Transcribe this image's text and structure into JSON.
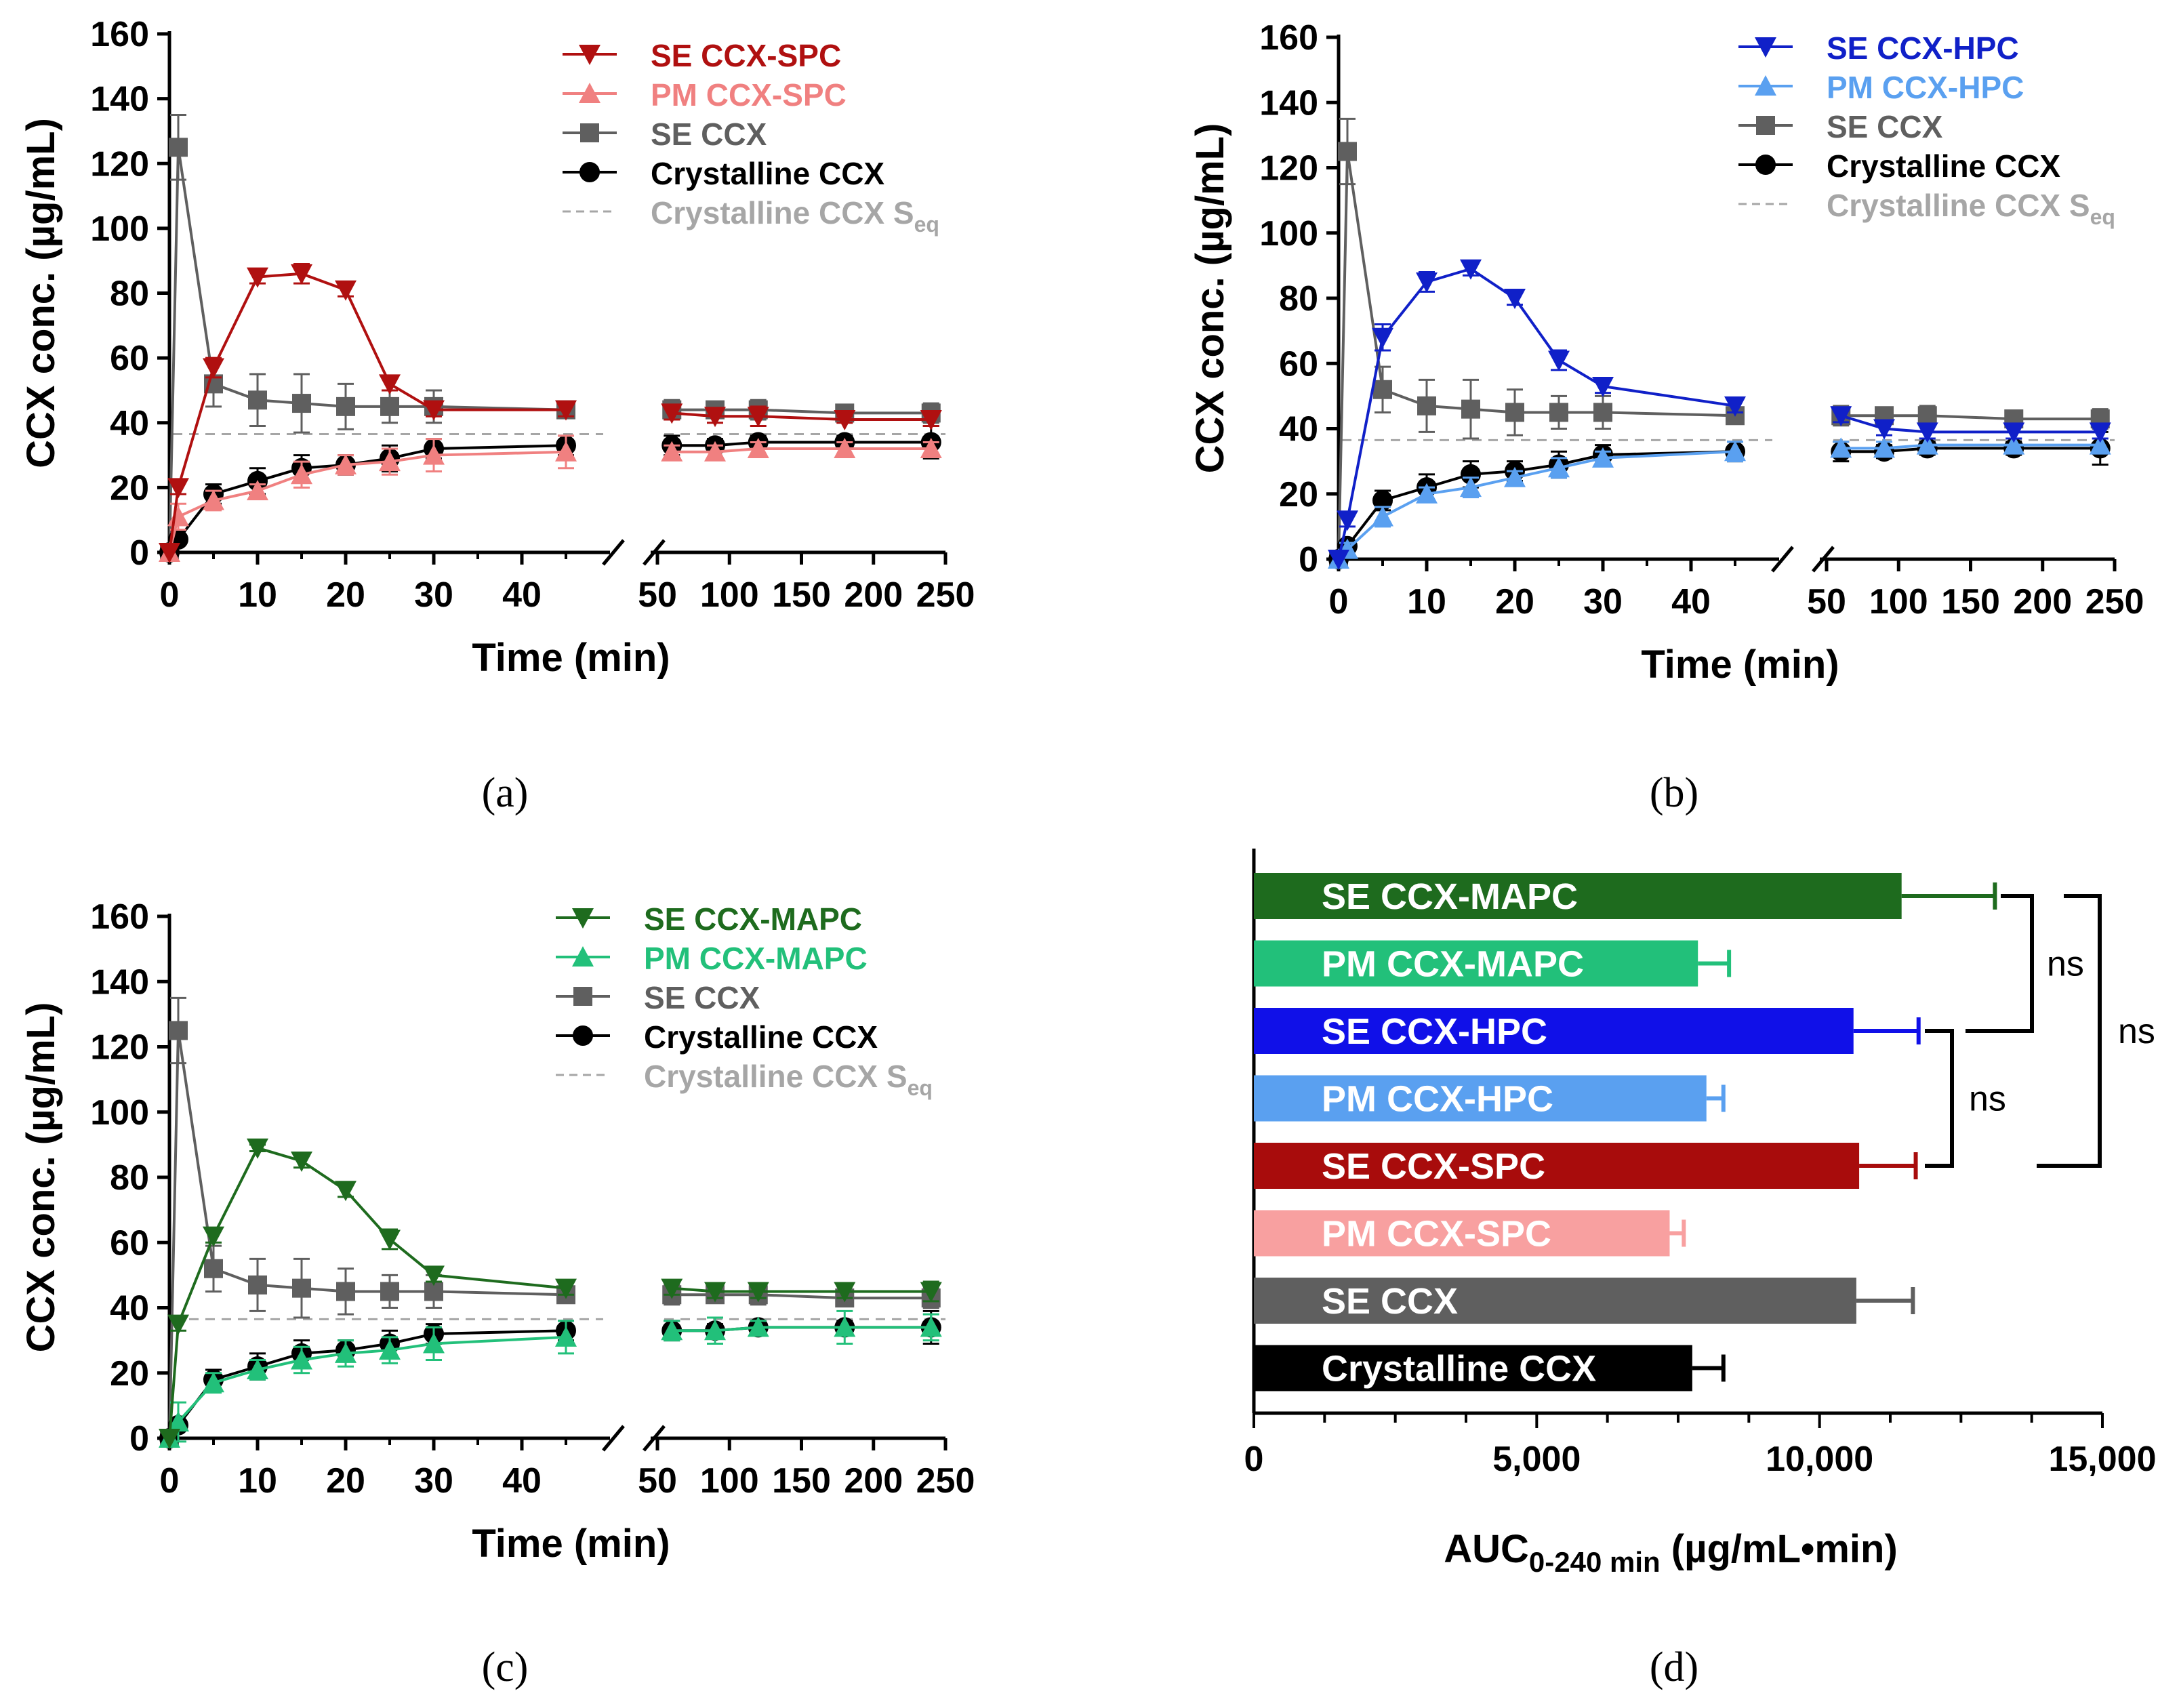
{
  "chart_data": [
    {
      "panel": "(a)",
      "type": "line",
      "ylabel": "CCX conc. (µg/mL)",
      "xlabel": "Time (min)",
      "ylim": [
        0,
        160
      ],
      "yticks": [
        "0",
        "20",
        "40",
        "60",
        "80",
        "100",
        "120",
        "140",
        "160"
      ],
      "xticks_left": [
        "0",
        "10",
        "20",
        "30",
        "40"
      ],
      "xticks_right": [
        "50",
        "100",
        "150",
        "200",
        "250"
      ],
      "reference_line": {
        "name": "Crystalline CCX S",
        "sub": "eq",
        "value": 36.5,
        "color": "#a6a6a6"
      },
      "series": [
        {
          "name": "SE  CCX-SPC",
          "color": "#b01010",
          "marker": "tri-down",
          "x": [
            0,
            1,
            5,
            10,
            15,
            20,
            25,
            30,
            45,
            60,
            90,
            120,
            180,
            240
          ],
          "y": [
            0,
            20,
            57,
            85,
            86,
            81,
            52,
            44,
            44,
            43,
            42,
            42,
            41,
            41
          ],
          "err": [
            0,
            2,
            3,
            2,
            3,
            2,
            2,
            2,
            2,
            2,
            2,
            3,
            1,
            2
          ]
        },
        {
          "name": "PM CCX-SPC",
          "color": "#f08080",
          "marker": "tri-up",
          "x": [
            0,
            1,
            5,
            10,
            15,
            20,
            25,
            30,
            45,
            60,
            90,
            120,
            180,
            240
          ],
          "y": [
            0,
            11,
            16,
            19,
            24,
            27,
            28,
            30,
            31,
            31,
            31,
            32,
            32,
            32
          ],
          "err": [
            0,
            4,
            3,
            2,
            4,
            3,
            4,
            5,
            5,
            2,
            2,
            2,
            2,
            2
          ]
        },
        {
          "name": "SE  CCX",
          "color": "#5f5f5f",
          "marker": "square",
          "x": [
            0,
            1,
            5,
            10,
            15,
            20,
            25,
            30,
            45,
            60,
            90,
            120,
            180,
            240
          ],
          "y": [
            0,
            125,
            52,
            47,
            46,
            45,
            45,
            45,
            44,
            44,
            44,
            44,
            43,
            43
          ],
          "err": [
            0,
            10,
            7,
            8,
            9,
            7,
            5,
            5,
            2,
            3,
            2,
            3,
            2,
            3
          ]
        },
        {
          "name": "Crystalline CCX",
          "color": "#000000",
          "marker": "circle",
          "x": [
            0,
            1,
            5,
            10,
            15,
            20,
            25,
            30,
            45,
            60,
            90,
            120,
            180,
            240
          ],
          "y": [
            0,
            4,
            18,
            22,
            26,
            27,
            29,
            32,
            33,
            33,
            33,
            34,
            34,
            34
          ],
          "err": [
            0,
            1,
            3,
            4,
            4,
            3,
            4,
            3,
            3,
            3,
            2,
            2,
            2,
            5
          ]
        }
      ]
    },
    {
      "panel": "(b)",
      "type": "line",
      "ylabel": "CCX conc. (µg/mL)",
      "xlabel": "Time (min)",
      "ylim": [
        0,
        160
      ],
      "yticks": [
        "0",
        "20",
        "40",
        "60",
        "80",
        "100",
        "120",
        "140",
        "160"
      ],
      "xticks_left": [
        "0",
        "10",
        "20",
        "30",
        "40"
      ],
      "xticks_right": [
        "50",
        "100",
        "150",
        "200",
        "250"
      ],
      "reference_line": {
        "name": "Crystalline CCX S",
        "sub": "eq",
        "value": 36.5,
        "color": "#a6a6a6"
      },
      "series": [
        {
          "name": "SE  CCX-HPC",
          "color": "#1020c8",
          "marker": "tri-down",
          "x": [
            0,
            1,
            5,
            10,
            15,
            20,
            25,
            30,
            45,
            60,
            90,
            120,
            180,
            240
          ],
          "y": [
            0,
            12,
            68,
            85,
            89,
            80,
            61,
            53,
            47,
            44,
            40,
            39,
            39,
            39
          ],
          "err": [
            0,
            2,
            4,
            3,
            2,
            2,
            3,
            2,
            2,
            2,
            2,
            2,
            2,
            2
          ]
        },
        {
          "name": "PM CCX-HPC",
          "color": "#5aa0f0",
          "marker": "tri-up",
          "x": [
            0,
            1,
            5,
            10,
            15,
            20,
            25,
            30,
            45,
            60,
            90,
            120,
            180,
            240
          ],
          "y": [
            0,
            3,
            13,
            20,
            22,
            25,
            28,
            31,
            33,
            34,
            34,
            35,
            35,
            35
          ],
          "err": [
            0,
            2,
            3,
            2,
            3,
            2,
            3,
            2,
            3,
            2,
            2,
            2,
            2,
            2
          ]
        },
        {
          "name": "SE CCX",
          "color": "#5f5f5f",
          "marker": "square",
          "x": [
            0,
            1,
            5,
            10,
            15,
            20,
            25,
            30,
            45,
            60,
            90,
            120,
            180,
            240
          ],
          "y": [
            0,
            125,
            52,
            47,
            46,
            45,
            45,
            45,
            44,
            44,
            44,
            44,
            43,
            43
          ],
          "err": [
            0,
            10,
            7,
            8,
            9,
            7,
            5,
            5,
            2,
            3,
            2,
            3,
            2,
            3
          ]
        },
        {
          "name": "Crystalline CCX",
          "color": "#000000",
          "marker": "circle",
          "x": [
            0,
            1,
            5,
            10,
            15,
            20,
            25,
            30,
            45,
            60,
            90,
            120,
            180,
            240
          ],
          "y": [
            0,
            4,
            18,
            22,
            26,
            27,
            29,
            32,
            33,
            33,
            33,
            34,
            34,
            34
          ],
          "err": [
            0,
            1,
            3,
            4,
            4,
            3,
            4,
            3,
            3,
            3,
            2,
            2,
            2,
            5
          ]
        }
      ]
    },
    {
      "panel": "(c)",
      "type": "line",
      "ylabel": "CCX conc. (µg/mL)",
      "xlabel": "Time (min)",
      "ylim": [
        0,
        160
      ],
      "yticks": [
        "0",
        "20",
        "40",
        "60",
        "80",
        "100",
        "120",
        "140",
        "160"
      ],
      "xticks_left": [
        "0",
        "10",
        "20",
        "30",
        "40"
      ],
      "xticks_right": [
        "50",
        "100",
        "150",
        "200",
        "250"
      ],
      "reference_line": {
        "name": "Crystalline CCX S",
        "sub": "eq",
        "value": 36.5,
        "color": "#a6a6a6"
      },
      "series": [
        {
          "name": "SE  CCX-MAPC",
          "color": "#1e6b1e",
          "marker": "tri-down",
          "x": [
            0,
            1,
            5,
            10,
            15,
            20,
            25,
            30,
            45,
            60,
            90,
            120,
            180,
            240
          ],
          "y": [
            0,
            35,
            62,
            89,
            85,
            76,
            61,
            50,
            46,
            46,
            45,
            45,
            45,
            45
          ],
          "err": [
            0,
            2,
            2,
            1,
            2,
            2,
            3,
            2,
            2,
            2,
            2,
            2,
            2,
            3
          ]
        },
        {
          "name": "PM CCX-MAPC",
          "color": "#22c07a",
          "marker": "tri-up",
          "x": [
            0,
            1,
            5,
            10,
            15,
            20,
            25,
            30,
            45,
            60,
            90,
            120,
            180,
            240
          ],
          "y": [
            0,
            5,
            17,
            21,
            24,
            26,
            27,
            29,
            31,
            33,
            33,
            34,
            34,
            34
          ],
          "err": [
            0,
            6,
            3,
            3,
            4,
            4,
            4,
            5,
            5,
            3,
            4,
            2,
            5,
            4
          ]
        },
        {
          "name": "SE CCX",
          "color": "#5f5f5f",
          "marker": "square",
          "x": [
            0,
            1,
            5,
            10,
            15,
            20,
            25,
            30,
            45,
            60,
            90,
            120,
            180,
            240
          ],
          "y": [
            0,
            125,
            52,
            47,
            46,
            45,
            45,
            45,
            44,
            44,
            44,
            44,
            43,
            43
          ],
          "err": [
            0,
            10,
            7,
            8,
            9,
            7,
            5,
            5,
            2,
            3,
            2,
            3,
            2,
            3
          ]
        },
        {
          "name": "Crystalline CCX",
          "color": "#000000",
          "marker": "circle",
          "x": [
            0,
            1,
            5,
            10,
            15,
            20,
            25,
            30,
            45,
            60,
            90,
            120,
            180,
            240
          ],
          "y": [
            0,
            4,
            18,
            22,
            26,
            27,
            29,
            32,
            33,
            33,
            33,
            34,
            34,
            34
          ],
          "err": [
            0,
            1,
            3,
            4,
            4,
            3,
            4,
            3,
            3,
            3,
            2,
            2,
            2,
            5
          ]
        }
      ]
    },
    {
      "panel": "(d)",
      "type": "bar",
      "orientation": "horizontal",
      "xlabel": "AUC",
      "xlabel_sub": "0-240  min",
      "xlabel_tail": " (µg/mL•min)",
      "xlim": [
        0,
        15000
      ],
      "xticks": [
        "0",
        "5,000",
        "10,000",
        "15,000"
      ],
      "categories": [
        "SE CCX-MAPC",
        "PM CCX-MAPC",
        "SE CCX-HPC",
        "PM CCX-HPC",
        "SE CCX-SPC",
        "PM CCX-SPC",
        "SE CCX",
        "Crystalline CCX"
      ],
      "values": [
        11450,
        7850,
        10600,
        8000,
        10700,
        7350,
        10650,
        7750
      ],
      "errors": [
        1650,
        550,
        1150,
        300,
        1000,
        250,
        1000,
        550
      ],
      "colors": [
        "#1e6b1e",
        "#22c07a",
        "#1010e8",
        "#5aa0f0",
        "#a80c0c",
        "#f8a0a0",
        "#5f5f5f",
        "#000000"
      ],
      "error_colors": [
        "#1e6b1e",
        "#22c07a",
        "#1010e8",
        "#5aa0f0",
        "#a80c0c",
        "#f8a0a0",
        "#5f5f5f",
        "#000000"
      ],
      "significance": [
        {
          "label": "ns",
          "between": [
            "SE CCX-MAPC",
            "SE CCX-HPC"
          ]
        },
        {
          "label": "ns",
          "between": [
            "SE CCX-HPC",
            "SE CCX-SPC"
          ]
        },
        {
          "label": "ns",
          "between": [
            "SE CCX-MAPC",
            "SE CCX-SPC"
          ]
        }
      ]
    }
  ],
  "panel_labels": [
    "(a)",
    "(b)",
    "(c)",
    "(d)"
  ]
}
